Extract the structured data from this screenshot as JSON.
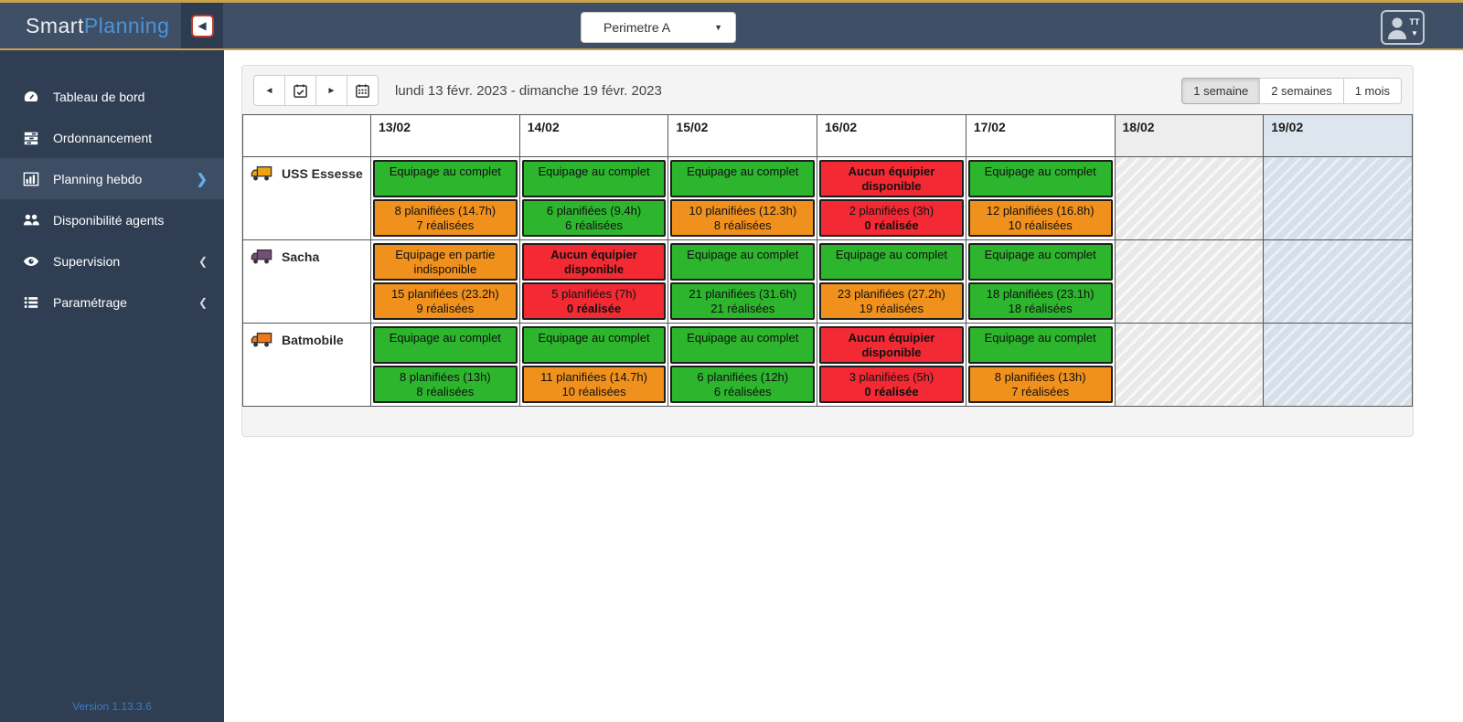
{
  "topbar": {
    "brand_part1": "Smart",
    "brand_part2": "Planning",
    "toggle_icon": "collapse-sidebar-icon",
    "perimeter_selected": "Perimetre A",
    "user_initials": "TT"
  },
  "sidebar": {
    "items": [
      {
        "label": "Tableau de bord",
        "icon": "dashboard-icon"
      },
      {
        "label": "Ordonnancement",
        "icon": "tasks-icon"
      },
      {
        "label": "Planning hebdo",
        "icon": "bar-chart-icon",
        "active": true
      },
      {
        "label": "Disponibilité agents",
        "icon": "users-icon"
      },
      {
        "label": "Supervision",
        "icon": "eye-icon",
        "expandable": true
      },
      {
        "label": "Paramétrage",
        "icon": "list-icon",
        "expandable": true
      }
    ],
    "version": "Version 1.13.3.6"
  },
  "toolbar": {
    "nav_icons": [
      "caret-left-icon",
      "calendar-check-icon",
      "caret-right-icon",
      "calendar-icon"
    ],
    "date_range": "lundi 13 févr. 2023 - dimanche 19 févr. 2023",
    "view_buttons": [
      {
        "label": "1 semaine",
        "active": true
      },
      {
        "label": "2 semaines",
        "active": false
      },
      {
        "label": "1 mois",
        "active": false
      }
    ]
  },
  "planning": {
    "day_headers": [
      "13/02",
      "14/02",
      "15/02",
      "16/02",
      "17/02",
      "18/02",
      "19/02"
    ],
    "status_colors": {
      "green": "#2db52d",
      "orange": "#f0911e",
      "red": "#f32a34"
    },
    "rows": [
      {
        "vehicle": "USS Essesse",
        "truck_color": "#f0a312",
        "days": [
          {
            "status": "Equipage au complet",
            "status_color": "green",
            "stats_line1": "8 planifiées (14.7h)",
            "stats_line2": "7 réalisées",
            "stats_color": "orange"
          },
          {
            "status": "Equipage au complet",
            "status_color": "green",
            "stats_line1": "6 planifiées (9.4h)",
            "stats_line2": "6 réalisées",
            "stats_color": "green"
          },
          {
            "status": "Equipage au complet",
            "status_color": "green",
            "stats_line1": "10 planifiées (12.3h)",
            "stats_line2": "8 réalisées",
            "stats_color": "orange"
          },
          {
            "status": "Aucun équipier disponible",
            "status_color": "red",
            "stats_line1": "2 planifiées (3h)",
            "stats_line2": "0 réalisée",
            "stats_color": "red"
          },
          {
            "status": "Equipage au complet",
            "status_color": "green",
            "stats_line1": "12 planifiées (16.8h)",
            "stats_line2": "10 réalisées",
            "stats_color": "orange"
          }
        ]
      },
      {
        "vehicle": "Sacha",
        "truck_color": "#744d78",
        "days": [
          {
            "status": "Equipage en partie indisponible",
            "status_color": "orange",
            "stats_line1": "15 planifiées (23.2h)",
            "stats_line2": "9 réalisées",
            "stats_color": "orange"
          },
          {
            "status": "Aucun équipier disponible",
            "status_color": "red",
            "stats_line1": "5 planifiées (7h)",
            "stats_line2": "0 réalisée",
            "stats_color": "red"
          },
          {
            "status": "Equipage au complet",
            "status_color": "green",
            "stats_line1": "21 planifiées (31.6h)",
            "stats_line2": "21 réalisées",
            "stats_color": "green"
          },
          {
            "status": "Equipage au complet",
            "status_color": "green",
            "stats_line1": "23 planifiées (27.2h)",
            "stats_line2": "19 réalisées",
            "stats_color": "orange"
          },
          {
            "status": "Equipage au complet",
            "status_color": "green",
            "stats_line1": "18 planifiées (23.1h)",
            "stats_line2": "18 réalisées",
            "stats_color": "green"
          }
        ]
      },
      {
        "vehicle": "Batmobile",
        "truck_color": "#ec7a1c",
        "days": [
          {
            "status": "Equipage au complet",
            "status_color": "green",
            "stats_line1": "8 planifiées (13h)",
            "stats_line2": "8 réalisées",
            "stats_color": "green"
          },
          {
            "status": "Equipage au complet",
            "status_color": "green",
            "stats_line1": "11 planifiées (14.7h)",
            "stats_line2": "10 réalisées",
            "stats_color": "orange"
          },
          {
            "status": "Equipage au complet",
            "status_color": "green",
            "stats_line1": "6 planifiées (12h)",
            "stats_line2": "6 réalisées",
            "stats_color": "green"
          },
          {
            "status": "Aucun équipier disponible",
            "status_color": "red",
            "stats_line1": "3 planifiées (5h)",
            "stats_line2": "0 réalisée",
            "stats_color": "red"
          },
          {
            "status": "Equipage au complet",
            "status_color": "green",
            "stats_line1": "8 planifiées (13h)",
            "stats_line2": "7 réalisées",
            "stats_color": "orange"
          }
        ]
      }
    ]
  }
}
